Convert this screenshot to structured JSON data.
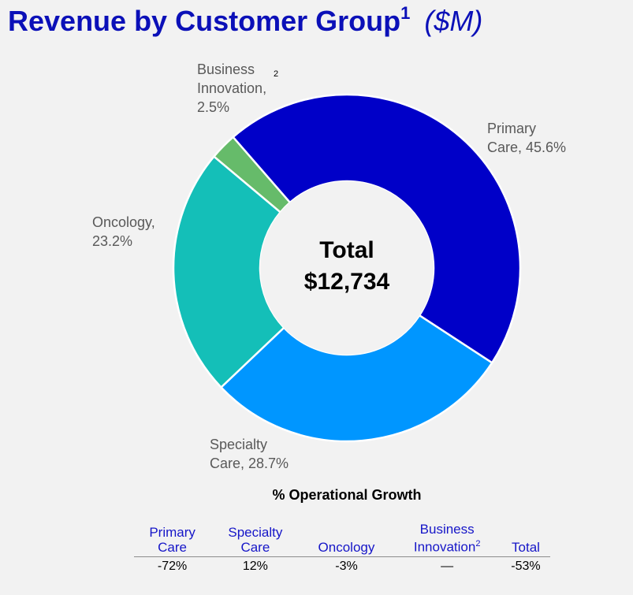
{
  "title": {
    "text": "Revenue by Customer Group",
    "footnote": "1",
    "unit": "($M)"
  },
  "center": {
    "label": "Total",
    "value": "$12,734"
  },
  "chart_data": {
    "type": "pie",
    "donut": true,
    "title": "Revenue by Customer Group ($M)",
    "total": 12734,
    "slices": [
      {
        "name": "Primary Care",
        "label_line1": "Primary",
        "label_line2": "Care, 45.6%",
        "percent": 45.6,
        "color": "#0000c8"
      },
      {
        "name": "Specialty Care",
        "label_line1": "Specialty",
        "label_line2": "Care, 28.7%",
        "percent": 28.7,
        "color": "#0096ff"
      },
      {
        "name": "Oncology",
        "label_line1": "Oncology,",
        "label_line2": "23.2%",
        "percent": 23.2,
        "color": "#14bfb8"
      },
      {
        "name": "Business Innovation",
        "label_line1": "Business",
        "label_line2": "Innovation,",
        "label_line3": "2.5%",
        "footnote": "2",
        "percent": 2.5,
        "color": "#66bb6a"
      }
    ]
  },
  "growth_table": {
    "title": "% Operational Growth",
    "columns": [
      {
        "line1": "Primary",
        "line2": "Care",
        "sup": "",
        "value": "-72%"
      },
      {
        "line1": "Specialty",
        "line2": "Care",
        "sup": "",
        "value": "12%"
      },
      {
        "line1": "",
        "line2": "Oncology",
        "sup": "",
        "value": "-3%"
      },
      {
        "line1": "Business",
        "line2": "Innovation",
        "sup": "2",
        "value": "—"
      },
      {
        "line1": "",
        "line2": "Total",
        "sup": "",
        "value": "-53%"
      }
    ]
  }
}
